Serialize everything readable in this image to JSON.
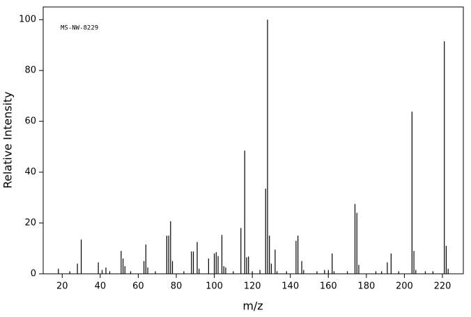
{
  "chart_data": {
    "type": "stem",
    "annotation": "MS-NW-8229",
    "xlabel": "m/z",
    "ylabel": "Relative Intensity",
    "x": [
      18,
      24,
      28,
      30,
      39,
      41,
      43,
      45,
      51,
      52,
      53,
      56,
      63,
      64,
      65,
      69,
      75,
      76,
      77,
      78,
      84,
      88,
      89,
      91,
      92,
      97,
      100,
      101,
      102,
      104,
      105,
      106,
      110,
      114,
      116,
      117,
      118,
      120,
      124,
      127,
      128,
      129,
      130,
      132,
      133,
      138,
      143,
      144,
      146,
      147,
      154,
      158,
      160,
      162,
      163,
      170,
      174,
      175,
      176,
      185,
      188,
      191,
      193,
      197,
      204,
      205,
      206,
      211,
      215,
      221,
      222,
      223
    ],
    "values": [
      2,
      1,
      4,
      13.5,
      4.5,
      1.5,
      2.5,
      1,
      9,
      6,
      3,
      1,
      5,
      11.5,
      2.5,
      1,
      15,
      15,
      20.7,
      5,
      1,
      8.8,
      8.8,
      12.5,
      2,
      6,
      8,
      8.5,
      7,
      15.3,
      3,
      2.5,
      1,
      18,
      48.5,
      6.5,
      6.8,
      1,
      1.5,
      33.5,
      100,
      15,
      4,
      9.5,
      1,
      1,
      13,
      15,
      5,
      1.5,
      1,
      1.5,
      1.5,
      8,
      1,
      1,
      27.5,
      24,
      3.5,
      1,
      1,
      4.5,
      8,
      1,
      63.8,
      9,
      1.5,
      1,
      1,
      91.5,
      11,
      2
    ],
    "color": "#000000",
    "xlim": [
      10,
      231
    ],
    "ylim": [
      0,
      105
    ],
    "xticks": [
      20,
      40,
      60,
      80,
      100,
      120,
      140,
      160,
      180,
      200,
      220
    ],
    "yticks": [
      0,
      20,
      40,
      60,
      80,
      100
    ]
  }
}
